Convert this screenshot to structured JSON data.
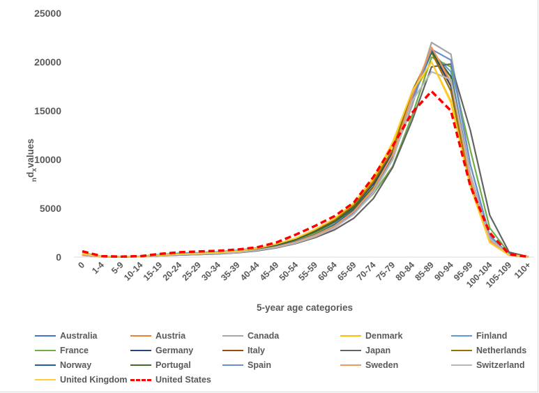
{
  "chart_data": {
    "type": "line",
    "xlabel": "5-year age categories",
    "ylabel": {
      "prefix": "n",
      "main": "d",
      "sub": "x",
      "suffix": "values"
    },
    "ylim": [
      0,
      25000
    ],
    "yticks": [
      0,
      5000,
      10000,
      15000,
      20000,
      25000
    ],
    "grid": false,
    "legend_position": "bottom",
    "categories": [
      "0",
      "1-4",
      "5-9",
      "10-14",
      "15-19",
      "20-24",
      "25-29",
      "30-34",
      "35-39",
      "40-44",
      "45-49",
      "50-54",
      "55-59",
      "60-64",
      "65-69",
      "70-74",
      "75-79",
      "80-84",
      "85-89",
      "90-94",
      "95-99",
      "100-104",
      "105-109",
      "110+"
    ],
    "series": [
      {
        "name": "Australia",
        "color": "#4472c4",
        "dashed": false,
        "values": [
          450,
          70,
          50,
          80,
          250,
          350,
          380,
          450,
          550,
          750,
          1100,
          1600,
          2300,
          3300,
          4900,
          7200,
          10500,
          16000,
          21000,
          18000,
          8500,
          2000,
          300,
          30
        ]
      },
      {
        "name": "Austria",
        "color": "#ed7d31",
        "dashed": false,
        "values": [
          300,
          50,
          40,
          70,
          200,
          280,
          320,
          400,
          500,
          700,
          1050,
          1500,
          2200,
          3200,
          4700,
          7000,
          10400,
          16500,
          21500,
          17500,
          8000,
          1800,
          250,
          25
        ]
      },
      {
        "name": "Canada",
        "color": "#a5a5a5",
        "dashed": false,
        "values": [
          450,
          70,
          50,
          80,
          250,
          350,
          400,
          480,
          580,
          800,
          1150,
          1650,
          2350,
          3350,
          4900,
          7100,
          10200,
          15500,
          22000,
          20800,
          9500,
          2100,
          300,
          30
        ]
      },
      {
        "name": "Denmark",
        "color": "#ffc000",
        "dashed": false,
        "values": [
          350,
          60,
          50,
          70,
          200,
          300,
          350,
          450,
          600,
          850,
          1300,
          1900,
          2800,
          3900,
          5500,
          7900,
          11500,
          16500,
          20000,
          16000,
          7500,
          1600,
          200,
          20
        ]
      },
      {
        "name": "Finland",
        "color": "#5b9bd5",
        "dashed": false,
        "values": [
          200,
          50,
          40,
          70,
          250,
          400,
          450,
          550,
          700,
          950,
          1300,
          1800,
          2500,
          3400,
          4900,
          7100,
          10500,
          16000,
          21000,
          19000,
          8500,
          1900,
          250,
          25
        ]
      },
      {
        "name": "France",
        "color": "#70ad47",
        "dashed": false,
        "values": [
          350,
          60,
          40,
          60,
          200,
          300,
          350,
          450,
          600,
          900,
          1300,
          1800,
          2500,
          3300,
          4500,
          6500,
          9300,
          14500,
          20500,
          19500,
          11000,
          3000,
          400,
          30
        ]
      },
      {
        "name": "Germany",
        "color": "#264478",
        "dashed": false,
        "values": [
          300,
          50,
          40,
          60,
          180,
          250,
          300,
          400,
          550,
          800,
          1200,
          1800,
          2700,
          3700,
          5200,
          7500,
          10700,
          16500,
          21200,
          17500,
          8000,
          1700,
          200,
          20
        ]
      },
      {
        "name": "Italy",
        "color": "#9e480e",
        "dashed": false,
        "values": [
          280,
          40,
          30,
          50,
          150,
          220,
          270,
          330,
          450,
          650,
          1000,
          1500,
          2200,
          3200,
          4700,
          7000,
          10500,
          16500,
          21000,
          18500,
          8500,
          1800,
          250,
          25
        ]
      },
      {
        "name": "Japan",
        "color": "#636363",
        "dashed": false,
        "values": [
          200,
          40,
          30,
          50,
          150,
          250,
          300,
          350,
          450,
          650,
          950,
          1400,
          2000,
          2800,
          4000,
          6000,
          9200,
          14000,
          19500,
          19800,
          13000,
          4300,
          500,
          40
        ]
      },
      {
        "name": "Netherlands",
        "color": "#997300",
        "dashed": false,
        "values": [
          350,
          50,
          40,
          60,
          170,
          230,
          280,
          380,
          550,
          850,
          1300,
          1900,
          2800,
          3800,
          5300,
          7700,
          11000,
          17000,
          21000,
          17000,
          7500,
          1500,
          200,
          20
        ]
      },
      {
        "name": "Norway",
        "color": "#255e91",
        "dashed": false,
        "values": [
          250,
          40,
          30,
          60,
          200,
          300,
          350,
          400,
          500,
          750,
          1100,
          1600,
          2300,
          3300,
          4800,
          7000,
          10400,
          16500,
          21200,
          18500,
          8200,
          1800,
          250,
          25
        ]
      },
      {
        "name": "Portugal",
        "color": "#43682b",
        "dashed": false,
        "values": [
          250,
          40,
          30,
          50,
          200,
          300,
          350,
          450,
          600,
          850,
          1250,
          1800,
          2600,
          3600,
          5000,
          7200,
          10500,
          16500,
          21000,
          18500,
          8000,
          1700,
          200,
          20
        ]
      },
      {
        "name": "Spain",
        "color": "#698ed0",
        "dashed": false,
        "values": [
          280,
          40,
          30,
          50,
          150,
          220,
          280,
          350,
          480,
          700,
          1050,
          1550,
          2250,
          3100,
          4500,
          6700,
          10000,
          16000,
          21300,
          20200,
          9500,
          2200,
          300,
          30
        ]
      },
      {
        "name": "Sweden",
        "color": "#f1975a",
        "dashed": false,
        "values": [
          220,
          40,
          30,
          50,
          180,
          280,
          330,
          380,
          480,
          700,
          1050,
          1550,
          2250,
          3200,
          4700,
          7000,
          10500,
          16500,
          21500,
          18000,
          8000,
          1700,
          250,
          25
        ]
      },
      {
        "name": "Switzerland",
        "color": "#b7b7b7",
        "dashed": false,
        "values": [
          300,
          40,
          30,
          50,
          200,
          300,
          330,
          380,
          480,
          700,
          1000,
          1450,
          2100,
          3000,
          4400,
          6600,
          10000,
          16000,
          19000,
          18200,
          8500,
          1900,
          250,
          25
        ]
      },
      {
        "name": "United Kingdom",
        "color": "#ffcd33",
        "dashed": false,
        "values": [
          350,
          60,
          50,
          60,
          200,
          300,
          380,
          480,
          620,
          900,
          1350,
          1950,
          2850,
          3950,
          5550,
          8100,
          11800,
          17000,
          20000,
          15800,
          7200,
          1500,
          200,
          20
        ]
      },
      {
        "name": "United States",
        "color": "#ff0000",
        "dashed": true,
        "values": [
          600,
          100,
          60,
          100,
          330,
          500,
          580,
          650,
          780,
          1000,
          1500,
          2300,
          3200,
          4200,
          5600,
          8200,
          11400,
          14800,
          17000,
          15000,
          7300,
          2500,
          300,
          30
        ]
      }
    ]
  }
}
